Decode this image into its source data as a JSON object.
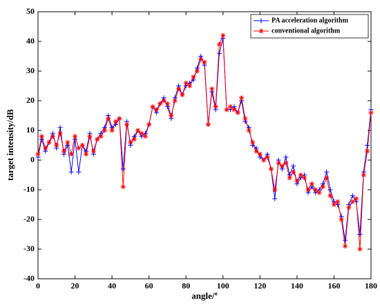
{
  "chart_data": {
    "type": "line",
    "x_label": "angle/º",
    "y_label": "target intensity/dB",
    "x": [
      0,
      2,
      4,
      6,
      8,
      10,
      12,
      14,
      16,
      18,
      20,
      22,
      24,
      26,
      28,
      30,
      32,
      34,
      36,
      38,
      40,
      42,
      44,
      46,
      48,
      50,
      52,
      54,
      56,
      58,
      60,
      62,
      64,
      66,
      68,
      70,
      72,
      74,
      76,
      78,
      80,
      82,
      84,
      86,
      88,
      90,
      92,
      94,
      96,
      98,
      100,
      102,
      104,
      106,
      108,
      110,
      112,
      114,
      116,
      118,
      120,
      122,
      124,
      126,
      128,
      130,
      132,
      134,
      136,
      138,
      140,
      142,
      144,
      146,
      148,
      150,
      152,
      154,
      156,
      158,
      160,
      162,
      164,
      166,
      168,
      170,
      172,
      174,
      176,
      178,
      180
    ],
    "series": [
      {
        "name": "PA acceleration algorithm",
        "color": "#0000ff",
        "marker": "plus",
        "values": [
          1,
          7,
          3,
          6,
          9,
          4,
          11,
          2,
          5,
          -4,
          7,
          -4,
          5,
          3,
          9,
          2,
          7,
          9,
          11,
          15,
          11,
          12,
          14,
          -3,
          13,
          5,
          8,
          10,
          8,
          9,
          12,
          18,
          16,
          19,
          21,
          18,
          14,
          21,
          25,
          22,
          25,
          26,
          27,
          31,
          35,
          32,
          12,
          23,
          17,
          36,
          41,
          17,
          17,
          18,
          16,
          20,
          13,
          11,
          5,
          4,
          1,
          0,
          2,
          -3,
          -13,
          0,
          -3,
          1,
          -5,
          -2,
          -8,
          -6,
          -5,
          -11,
          -9,
          -11,
          -10,
          -8,
          -4,
          -10,
          -14,
          -15,
          -19,
          -27,
          -15,
          -12,
          -14,
          -25,
          -4,
          5,
          17
        ]
      },
      {
        "name": "conventional algorithm",
        "color": "#ff0000",
        "marker": "star",
        "values": [
          2,
          8,
          4,
          6,
          8,
          5,
          9,
          3,
          6,
          2,
          8,
          4,
          5,
          2,
          8,
          3,
          7,
          8,
          10,
          14,
          10,
          13,
          14,
          -9,
          12,
          6,
          7,
          10,
          9,
          8,
          12,
          18,
          17,
          19,
          20,
          19,
          15,
          20,
          24,
          22,
          26,
          25,
          28,
          30,
          34,
          33,
          12,
          24,
          18,
          39,
          42,
          17,
          18,
          17,
          16,
          21,
          14,
          10,
          6,
          3,
          2,
          0,
          1,
          -3,
          -10,
          -1,
          -2,
          -1,
          -6,
          -4,
          -7,
          -5,
          -6,
          -10,
          -8,
          -10,
          -11,
          -9,
          -6,
          -12,
          -15,
          -14,
          -20,
          -29,
          -16,
          -14,
          -13,
          -30,
          -5,
          3,
          16
        ]
      }
    ],
    "xlim": [
      0,
      180
    ],
    "xticks": [
      0,
      20,
      40,
      60,
      80,
      100,
      120,
      140,
      160,
      180
    ],
    "ylim": [
      -40,
      50
    ],
    "yticks": [
      -40,
      -30,
      -20,
      -10,
      0,
      10,
      20,
      30,
      40,
      50
    ],
    "grid": false,
    "legend": "upper right"
  }
}
